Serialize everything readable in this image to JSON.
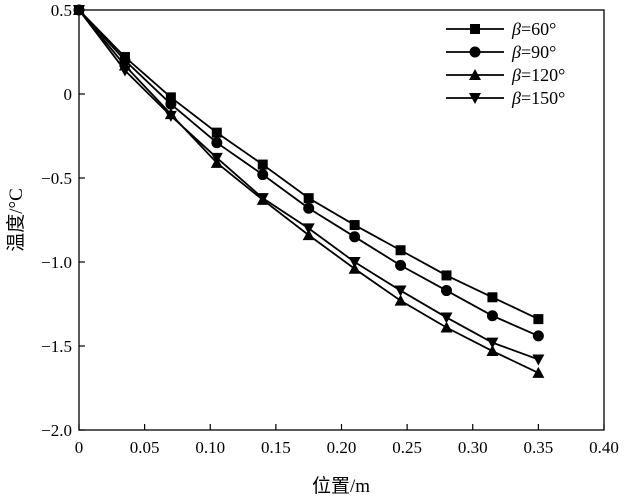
{
  "chart_data": {
    "type": "line",
    "title": "",
    "xlabel": "位置/m",
    "ylabel": "温度/°C",
    "xlim": [
      0,
      0.4
    ],
    "ylim": [
      -2.0,
      0.5
    ],
    "x_ticks": [
      0,
      0.05,
      0.1,
      0.15,
      0.2,
      0.25,
      0.3,
      0.35,
      0.4
    ],
    "x_tick_labels": [
      "0",
      "0.05",
      "0.10",
      "0.15",
      "0.20",
      "0.25",
      "0.30",
      "0.35",
      "0.40"
    ],
    "y_ticks": [
      0.5,
      0,
      -0.5,
      -1.0,
      -1.5,
      -2.0
    ],
    "y_tick_labels": [
      "0.5",
      "0",
      "−0.5",
      "−1.0",
      "−1.5",
      "−2.0"
    ],
    "legend_position": "top-right",
    "x": [
      0,
      0.035,
      0.07,
      0.105,
      0.14,
      0.175,
      0.21,
      0.245,
      0.28,
      0.315,
      0.35
    ],
    "series": [
      {
        "name": "β=60°",
        "symbol": "β",
        "suffix": "=60°",
        "marker": "square",
        "values": [
          0.5,
          0.22,
          -0.02,
          -0.23,
          -0.42,
          -0.62,
          -0.78,
          -0.93,
          -1.08,
          -1.21,
          -1.34
        ]
      },
      {
        "name": "β=90°",
        "symbol": "β",
        "suffix": "=90°",
        "marker": "circle",
        "values": [
          0.5,
          0.2,
          -0.06,
          -0.29,
          -0.48,
          -0.68,
          -0.85,
          -1.02,
          -1.17,
          -1.32,
          -1.44
        ]
      },
      {
        "name": "β=120°",
        "symbol": "β",
        "suffix": "=120°",
        "marker": "triangle-up",
        "values": [
          0.5,
          0.17,
          -0.12,
          -0.41,
          -0.63,
          -0.84,
          -1.04,
          -1.23,
          -1.39,
          -1.53,
          -1.66
        ]
      },
      {
        "name": "β=150°",
        "symbol": "β",
        "suffix": "=150°",
        "marker": "triangle-down",
        "values": [
          0.5,
          0.14,
          -0.13,
          -0.38,
          -0.62,
          -0.8,
          -1.0,
          -1.17,
          -1.33,
          -1.48,
          -1.58
        ]
      }
    ]
  }
}
